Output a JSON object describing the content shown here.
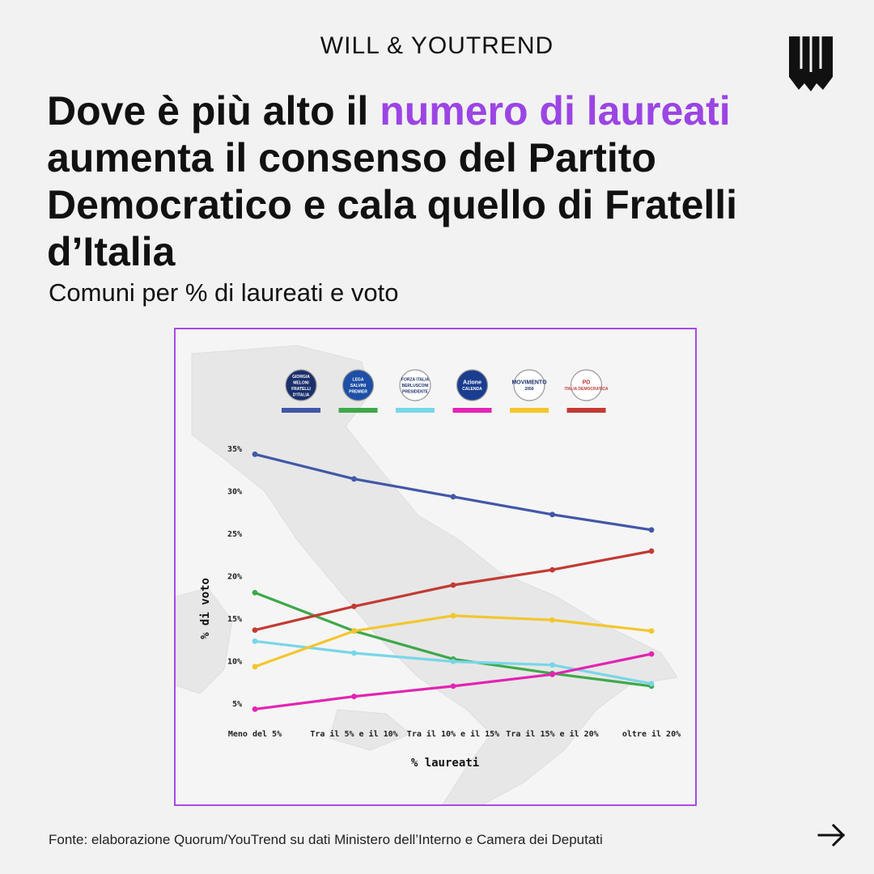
{
  "header": {
    "brand": "WILL & YOUTREND",
    "logo_icon": "will-logo-icon"
  },
  "headline": {
    "part1": "Dove è più alto il ",
    "highlight": "numero di laureati",
    "part2": " aumenta il consenso del Partito Democratico e cala quello di Fratelli d’Italia"
  },
  "subtitle": "Comuni per % di laureati e voto",
  "source": "Fonte: elaborazione Quorum/YouTrend su dati Ministero dell’Interno e Camera dei Deputati",
  "nav": {
    "next_icon": "arrow-right-icon"
  },
  "colors": {
    "background": "#f2f2f2",
    "accent": "#9b45e4",
    "panel_border": "#a64be6"
  },
  "chart_data": {
    "type": "line",
    "title": "",
    "xlabel": "% laureati",
    "ylabel": "% di voto",
    "ylim": [
      5,
      35
    ],
    "yticks": [
      {
        "value": 5,
        "label": "5%"
      },
      {
        "value": 10,
        "label": "10%"
      },
      {
        "value": 15,
        "label": "15%"
      },
      {
        "value": 20,
        "label": "20%"
      },
      {
        "value": 25,
        "label": "25%"
      },
      {
        "value": 30,
        "label": "30%"
      },
      {
        "value": 35,
        "label": "35%"
      }
    ],
    "categories": [
      "Meno del 5%",
      "Tra il 5% e il 10%",
      "Tra il 10% e il 15%",
      "Tra il 15% e il 20%",
      "oltre il 20%"
    ],
    "legend_position": "top",
    "series": [
      {
        "name": "Fratelli d'Italia",
        "logo": [
          "GIORGIA",
          "MELONI",
          "FRATELLI",
          "D'ITALIA"
        ],
        "logo_bg": "#1b2f6b",
        "color": "#4257a8",
        "values": [
          34.4,
          31.5,
          29.4,
          27.3,
          25.5
        ]
      },
      {
        "name": "Lega",
        "logo": [
          "LEGA",
          "SALVINI",
          "PREMIER"
        ],
        "logo_bg": "#1d4fa6",
        "color": "#3fa84a",
        "values": [
          18.1,
          13.6,
          10.3,
          8.6,
          7.1
        ]
      },
      {
        "name": "Forza Italia",
        "logo": [
          "FORZA ITALIA",
          "BERLUSCONI",
          "PRESIDENTE"
        ],
        "logo_bg": "#ffffff",
        "color": "#78d6e8",
        "values": [
          12.4,
          11.0,
          10.0,
          9.6,
          7.4
        ]
      },
      {
        "name": "Azione - Italia Viva",
        "logo": [
          "Azione",
          "CALENDA"
        ],
        "logo_bg": "#1a3d8f",
        "color": "#e224b2",
        "values": [
          4.4,
          5.9,
          7.1,
          8.5,
          10.9
        ]
      },
      {
        "name": "Movimento 5 Stelle",
        "logo": [
          "MOVIMENTO",
          "2050"
        ],
        "logo_bg": "#ffffff",
        "color": "#f3c62d",
        "values": [
          9.4,
          13.6,
          15.4,
          14.9,
          13.6
        ]
      },
      {
        "name": "Partito Democratico",
        "logo": [
          "PD",
          "ITALIA DEMOCRATICA"
        ],
        "logo_bg": "#ffffff",
        "color": "#c23a34",
        "values": [
          13.7,
          16.5,
          19.0,
          20.8,
          23.0
        ]
      }
    ]
  }
}
